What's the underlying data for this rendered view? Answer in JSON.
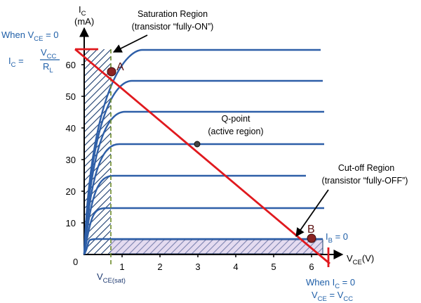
{
  "colors": {
    "curve": "#2e5fa8",
    "load_line": "#e0191e",
    "hatch": "#1b3c6e",
    "cutoff_fill": "#cdbde4",
    "vce_sat_line": "#6d8a2a",
    "point_fill": "#8b2323",
    "annotation_blue": "#1f5fa8"
  },
  "axes": {
    "y_label": "I",
    "y_label_sub": "C",
    "y_unit": "(mA)",
    "x_label": "V",
    "x_label_sub": "CE",
    "x_unit": "(V)",
    "origin_label": "0",
    "y_ticks": [
      "10",
      "20",
      "30",
      "40",
      "50",
      "60"
    ],
    "x_ticks": [
      "1",
      "2",
      "3",
      "4",
      "5",
      "6"
    ]
  },
  "annotations": {
    "saturation_title": "Saturation Region",
    "saturation_sub": "(transistor “fully-ON”)",
    "qpoint_title": "Q-point",
    "qpoint_sub": "(active region)",
    "cutoff_title": "Cut-off Region",
    "cutoff_sub": "(transistor “fully-OFF”)",
    "point_a": "A",
    "point_b": "B",
    "ib_label": "I",
    "ib_sub": "B",
    "ib_value": " = 0",
    "vce_sat_v": "V",
    "vce_sat_sub": "CE(sat)",
    "when_vce0": "When V",
    "when_vce0_sub": "CE",
    "when_vce0_tail": " = 0",
    "ic_eq": "I",
    "ic_eq_sub": "C",
    "ic_eq_tail": " =",
    "frac_num": "V",
    "frac_num_sub": "CC",
    "frac_den": "R",
    "frac_den_sub": "L",
    "when_ic0": "When I",
    "when_ic0_sub": "C",
    "when_ic0_tail": " = 0",
    "vce_eq_v": "V",
    "vce_eq_sub": "CE",
    "vce_eq_mid": " = V",
    "vce_eq_sub2": "CC"
  }
}
